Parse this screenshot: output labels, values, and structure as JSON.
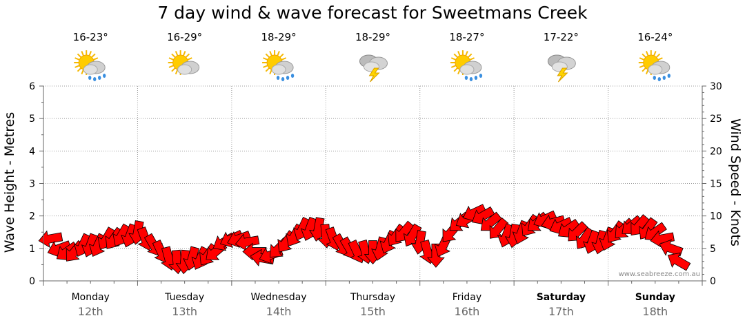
{
  "title": "7 day wind & wave forecast for Sweetmans Creek",
  "credit": "www.seabreeze.com.au",
  "days": [
    {
      "name": "Monday",
      "date": "12th",
      "temp": "16-23°",
      "icon": "sun-cloud-rain-icon",
      "bold": false
    },
    {
      "name": "Tuesday",
      "date": "13th",
      "temp": "16-29°",
      "icon": "sun-cloud-icon",
      "bold": false
    },
    {
      "name": "Wednesday",
      "date": "14th",
      "temp": "18-29°",
      "icon": "sun-cloud-rain-icon",
      "bold": false
    },
    {
      "name": "Thursday",
      "date": "15th",
      "temp": "18-29°",
      "icon": "storm-icon",
      "bold": false
    },
    {
      "name": "Friday",
      "date": "16th",
      "temp": "18-27°",
      "icon": "sun-cloud-rain-icon",
      "bold": false
    },
    {
      "name": "Saturday",
      "date": "17th",
      "temp": "17-22°",
      "icon": "storm-icon",
      "bold": true
    },
    {
      "name": "Sunday",
      "date": "18th",
      "temp": "16-24°",
      "icon": "sun-cloud-rain-icon",
      "bold": true
    }
  ],
  "chart_data": {
    "type": "line",
    "title": "7 day wind & wave forecast for Sweetmans Creek",
    "ylabel_left": "Wave Height - Metres",
    "ylabel_right": "Wind Speed - Knots",
    "ylim_left": [
      0,
      6
    ],
    "ylim_right": [
      0,
      30
    ],
    "yticks_left": [
      0,
      1,
      2,
      3,
      4,
      5,
      6
    ],
    "yticks_right": [
      0,
      5,
      10,
      15,
      20,
      25,
      30
    ],
    "x_unit": "days from Monday 00:00",
    "series": [
      {
        "name": "Wind Speed (knots, arrows show direction)",
        "color": "#ff0000",
        "points": [
          {
            "x": 0.08,
            "y": 6.5,
            "dir": 260
          },
          {
            "x": 0.17,
            "y": 5.0,
            "dir": 250
          },
          {
            "x": 0.25,
            "y": 4.5,
            "dir": 235
          },
          {
            "x": 0.33,
            "y": 4.5,
            "dir": 220
          },
          {
            "x": 0.42,
            "y": 5.5,
            "dir": 205
          },
          {
            "x": 0.5,
            "y": 5.5,
            "dir": 200
          },
          {
            "x": 0.58,
            "y": 5.5,
            "dir": 205
          },
          {
            "x": 0.67,
            "y": 6.5,
            "dir": 210
          },
          {
            "x": 0.75,
            "y": 6.5,
            "dir": 215
          },
          {
            "x": 0.83,
            "y": 7.0,
            "dir": 210
          },
          {
            "x": 0.92,
            "y": 7.0,
            "dir": 200
          },
          {
            "x": 1.0,
            "y": 7.5,
            "dir": 190
          },
          {
            "x": 1.08,
            "y": 6.5,
            "dir": 160
          },
          {
            "x": 1.17,
            "y": 5.5,
            "dir": 150
          },
          {
            "x": 1.25,
            "y": 4.5,
            "dir": 155
          },
          {
            "x": 1.33,
            "y": 3.5,
            "dir": 165
          },
          {
            "x": 1.42,
            "y": 3.0,
            "dir": 175
          },
          {
            "x": 1.5,
            "y": 3.0,
            "dir": 185
          },
          {
            "x": 1.58,
            "y": 3.5,
            "dir": 195
          },
          {
            "x": 1.67,
            "y": 3.5,
            "dir": 205
          },
          {
            "x": 1.75,
            "y": 4.0,
            "dir": 215
          },
          {
            "x": 1.83,
            "y": 4.5,
            "dir": 230
          },
          {
            "x": 1.92,
            "y": 6.0,
            "dir": 240
          },
          {
            "x": 2.0,
            "y": 6.5,
            "dir": 245
          },
          {
            "x": 2.08,
            "y": 6.5,
            "dir": 250
          },
          {
            "x": 2.17,
            "y": 6.0,
            "dir": 260
          },
          {
            "x": 2.25,
            "y": 4.5,
            "dir": 270
          },
          {
            "x": 2.33,
            "y": 3.5,
            "dir": 280
          },
          {
            "x": 2.42,
            "y": 4.0,
            "dir": 250
          },
          {
            "x": 2.5,
            "y": 5.0,
            "dir": 225
          },
          {
            "x": 2.58,
            "y": 6.0,
            "dir": 215
          },
          {
            "x": 2.67,
            "y": 7.0,
            "dir": 210
          },
          {
            "x": 2.75,
            "y": 8.0,
            "dir": 205
          },
          {
            "x": 2.83,
            "y": 8.0,
            "dir": 200
          },
          {
            "x": 2.92,
            "y": 8.0,
            "dir": 190
          },
          {
            "x": 3.0,
            "y": 7.0,
            "dir": 175
          },
          {
            "x": 3.08,
            "y": 6.5,
            "dir": 160
          },
          {
            "x": 3.17,
            "y": 5.5,
            "dir": 150
          },
          {
            "x": 3.25,
            "y": 5.0,
            "dir": 150
          },
          {
            "x": 3.33,
            "y": 4.5,
            "dir": 155
          },
          {
            "x": 3.42,
            "y": 4.5,
            "dir": 165
          },
          {
            "x": 3.5,
            "y": 4.5,
            "dir": 180
          },
          {
            "x": 3.58,
            "y": 5.0,
            "dir": 195
          },
          {
            "x": 3.67,
            "y": 6.0,
            "dir": 205
          },
          {
            "x": 3.75,
            "y": 7.0,
            "dir": 215
          },
          {
            "x": 3.83,
            "y": 7.5,
            "dir": 220
          },
          {
            "x": 3.92,
            "y": 7.0,
            "dir": 210
          },
          {
            "x": 4.0,
            "y": 6.0,
            "dir": 190
          },
          {
            "x": 4.08,
            "y": 4.5,
            "dir": 165
          },
          {
            "x": 4.17,
            "y": 4.0,
            "dir": 180
          },
          {
            "x": 4.25,
            "y": 5.5,
            "dir": 205
          },
          {
            "x": 4.33,
            "y": 7.5,
            "dir": 220
          },
          {
            "x": 4.42,
            "y": 9.0,
            "dir": 230
          },
          {
            "x": 4.5,
            "y": 9.5,
            "dir": 240
          },
          {
            "x": 4.58,
            "y": 10.5,
            "dir": 245
          },
          {
            "x": 4.67,
            "y": 10.0,
            "dir": 240
          },
          {
            "x": 4.75,
            "y": 9.0,
            "dir": 230
          },
          {
            "x": 4.83,
            "y": 8.0,
            "dir": 220
          },
          {
            "x": 4.92,
            "y": 7.0,
            "dir": 200
          },
          {
            "x": 5.0,
            "y": 7.0,
            "dir": 190
          },
          {
            "x": 5.08,
            "y": 7.5,
            "dir": 200
          },
          {
            "x": 5.17,
            "y": 8.5,
            "dir": 215
          },
          {
            "x": 5.25,
            "y": 9.0,
            "dir": 230
          },
          {
            "x": 5.33,
            "y": 9.5,
            "dir": 245
          },
          {
            "x": 5.42,
            "y": 9.0,
            "dir": 255
          },
          {
            "x": 5.5,
            "y": 8.5,
            "dir": 245
          },
          {
            "x": 5.58,
            "y": 8.0,
            "dir": 235
          },
          {
            "x": 5.67,
            "y": 7.5,
            "dir": 225
          },
          {
            "x": 5.75,
            "y": 6.5,
            "dir": 215
          },
          {
            "x": 5.83,
            "y": 6.0,
            "dir": 200
          },
          {
            "x": 5.92,
            "y": 6.0,
            "dir": 195
          },
          {
            "x": 6.0,
            "y": 6.5,
            "dir": 200
          },
          {
            "x": 6.08,
            "y": 7.5,
            "dir": 215
          },
          {
            "x": 6.17,
            "y": 8.0,
            "dir": 225
          },
          {
            "x": 6.25,
            "y": 8.5,
            "dir": 230
          },
          {
            "x": 6.33,
            "y": 8.5,
            "dir": 220
          },
          {
            "x": 6.42,
            "y": 8.0,
            "dir": 215
          },
          {
            "x": 6.5,
            "y": 7.5,
            "dir": 235
          },
          {
            "x": 6.58,
            "y": 6.5,
            "dir": 260
          },
          {
            "x": 6.67,
            "y": 5.0,
            "dir": 290
          },
          {
            "x": 6.75,
            "y": 3.0,
            "dir": 300
          }
        ]
      }
    ],
    "x_categories": [
      "Monday 12th",
      "Tuesday 13th",
      "Wednesday 14th",
      "Thursday 15th",
      "Friday 16th",
      "Saturday 17th",
      "Sunday 18th"
    ]
  }
}
